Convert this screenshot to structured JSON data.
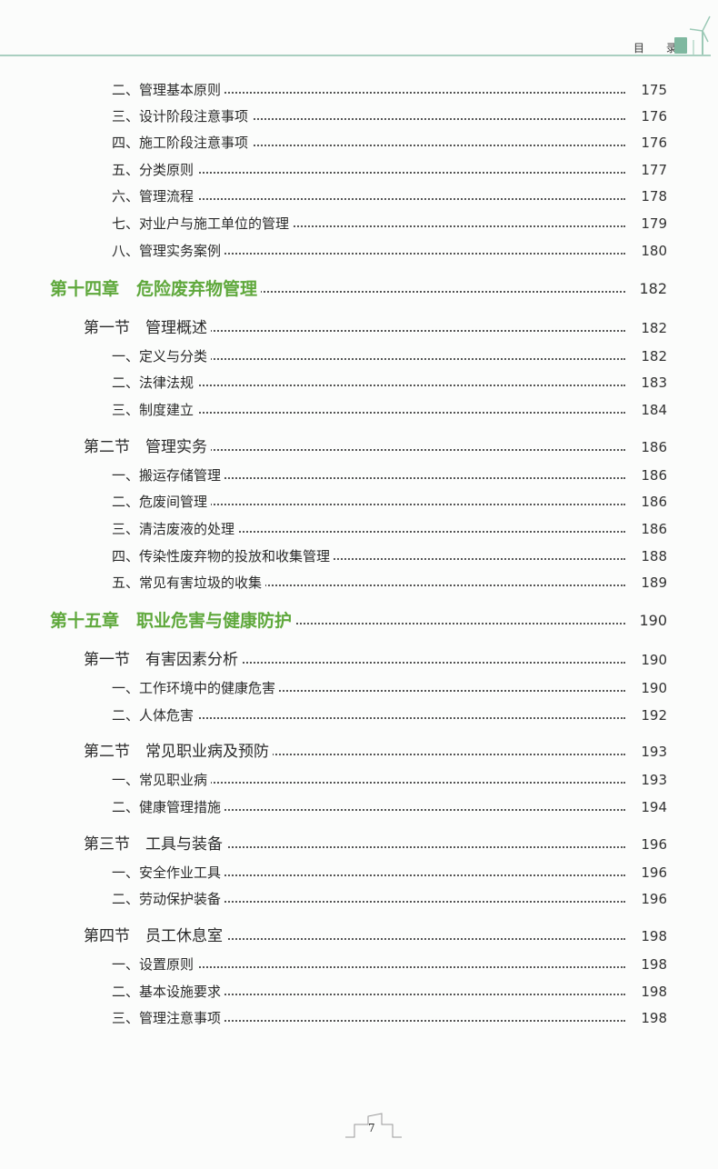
{
  "header": {
    "title": "目 录",
    "icons": [
      "recycle-bin-icon",
      "wind-turbine-icon"
    ]
  },
  "colors": {
    "chapter": "#5fa83c",
    "header_line": "#a9cfc0"
  },
  "toc": [
    {
      "level": "item",
      "label": "二、管理基本原则",
      "page": "175"
    },
    {
      "level": "item",
      "label": "三、设计阶段注意事项",
      "page": "176"
    },
    {
      "level": "item",
      "label": "四、施工阶段注意事项",
      "page": "176"
    },
    {
      "level": "item",
      "label": "五、分类原则",
      "page": "177"
    },
    {
      "level": "item",
      "label": "六、管理流程",
      "page": "178"
    },
    {
      "level": "item",
      "label": "七、对业户与施工单位的管理",
      "page": "179"
    },
    {
      "level": "item",
      "label": "八、管理实务案例",
      "page": "180"
    },
    {
      "level": "chap",
      "label": "第十四章　危险废弃物管理",
      "page": "182"
    },
    {
      "level": "sec",
      "label": "第一节　管理概述",
      "page": "182"
    },
    {
      "level": "item",
      "label": "一、定义与分类",
      "page": "182"
    },
    {
      "level": "item",
      "label": "二、法律法规",
      "page": "183"
    },
    {
      "level": "item",
      "label": "三、制度建立",
      "page": "184"
    },
    {
      "level": "sec",
      "label": "第二节　管理实务",
      "page": "186"
    },
    {
      "level": "item",
      "label": "一、搬运存储管理",
      "page": "186"
    },
    {
      "level": "item",
      "label": "二、危废间管理",
      "page": "186"
    },
    {
      "level": "item",
      "label": "三、清洁废液的处理",
      "page": "186"
    },
    {
      "level": "item",
      "label": "四、传染性废弃物的投放和收集管理",
      "page": "188"
    },
    {
      "level": "item",
      "label": "五、常见有害垃圾的收集",
      "page": "189"
    },
    {
      "level": "chap",
      "label": "第十五章　职业危害与健康防护",
      "page": "190"
    },
    {
      "level": "sec",
      "label": "第一节　有害因素分析",
      "page": "190"
    },
    {
      "level": "item",
      "label": "一、工作环境中的健康危害",
      "page": "190"
    },
    {
      "level": "item",
      "label": "二、人体危害",
      "page": "192"
    },
    {
      "level": "sec",
      "label": "第二节　常见职业病及预防",
      "page": "193"
    },
    {
      "level": "item",
      "label": "一、常见职业病",
      "page": "193"
    },
    {
      "level": "item",
      "label": "二、健康管理措施",
      "page": "194"
    },
    {
      "level": "sec",
      "label": "第三节　工具与装备",
      "page": "196"
    },
    {
      "level": "item",
      "label": "一、安全作业工具",
      "page": "196"
    },
    {
      "level": "item",
      "label": "二、劳动保护装备",
      "page": "196"
    },
    {
      "level": "sec",
      "label": "第四节　员工休息室",
      "page": "198"
    },
    {
      "level": "item",
      "label": "一、设置原则",
      "page": "198"
    },
    {
      "level": "item",
      "label": "二、基本设施要求",
      "page": "198"
    },
    {
      "level": "item",
      "label": "三、管理注意事项",
      "page": "198"
    }
  ],
  "footer": {
    "page_number": "7"
  }
}
